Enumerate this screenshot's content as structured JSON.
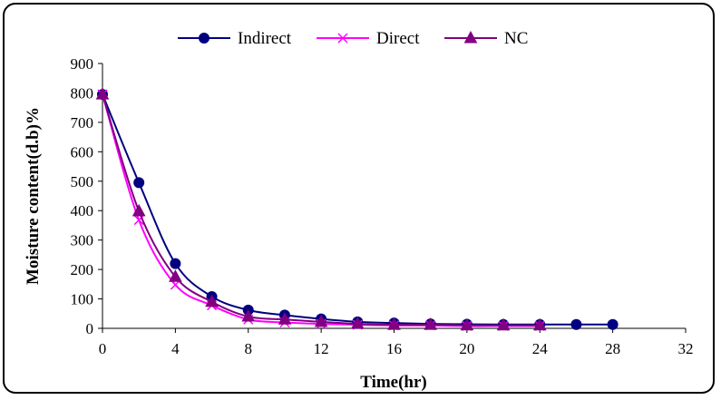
{
  "chart_data": {
    "type": "line",
    "title": "",
    "xlabel": "Time(hr)",
    "ylabel": "Moisture content(d.b)%",
    "xlim": [
      0,
      32
    ],
    "ylim": [
      0,
      900
    ],
    "xticks": [
      0,
      4,
      8,
      12,
      16,
      20,
      24,
      28,
      32
    ],
    "yticks": [
      0,
      100,
      200,
      300,
      400,
      500,
      600,
      700,
      800,
      900
    ],
    "grid": false,
    "legend_position": "top",
    "series": [
      {
        "name": "Indirect",
        "color": "#000080",
        "marker": "circle",
        "x": [
          0,
          2,
          4,
          6,
          8,
          10,
          12,
          14,
          16,
          18,
          20,
          22,
          24,
          26,
          28
        ],
        "y": [
          795,
          495,
          220,
          108,
          62,
          45,
          32,
          22,
          18,
          15,
          14,
          13,
          13,
          13,
          13
        ]
      },
      {
        "name": "Direct",
        "color": "#FF00FF",
        "marker": "x",
        "x": [
          0,
          2,
          4,
          6,
          8,
          10,
          12,
          14,
          16,
          18,
          20,
          22,
          24
        ],
        "y": [
          795,
          368,
          148,
          78,
          30,
          20,
          15,
          12,
          10,
          10,
          8,
          8,
          8
        ]
      },
      {
        "name": "NC",
        "color": "#800080",
        "marker": "triangle",
        "x": [
          0,
          2,
          4,
          6,
          8,
          10,
          12,
          14,
          16,
          18,
          20,
          22,
          24
        ],
        "y": [
          795,
          398,
          175,
          90,
          40,
          30,
          22,
          15,
          12,
          12,
          10,
          10,
          10
        ]
      }
    ]
  }
}
